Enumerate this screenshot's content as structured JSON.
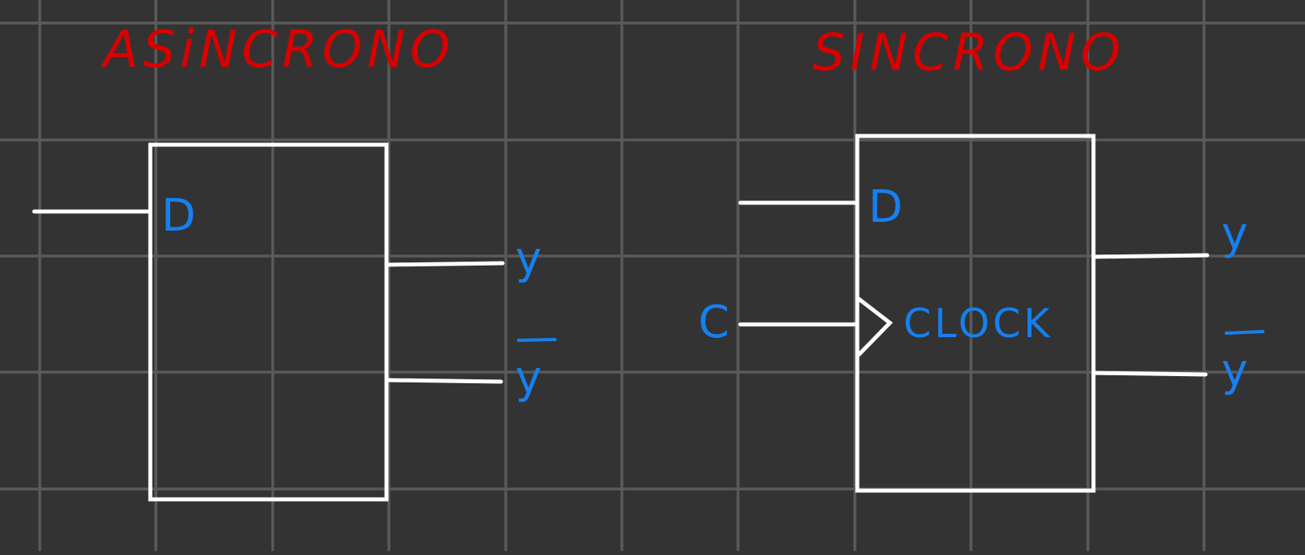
{
  "colors": {
    "background": "#333333",
    "grid": "#5a5a5a",
    "title": "#d90000",
    "label": "#1580f0",
    "wire": "#ffffff"
  },
  "grid": true,
  "diagrams": {
    "async": {
      "title": "ASiNCRONO",
      "input_label": "D",
      "output_label": "y",
      "output_negated_label": "y"
    },
    "sync": {
      "title": "SINCRONO",
      "input_label": "D",
      "clock_input_label": "C",
      "clock_label": "CLOCK",
      "output_label": "y",
      "output_negated_label": "y"
    }
  }
}
